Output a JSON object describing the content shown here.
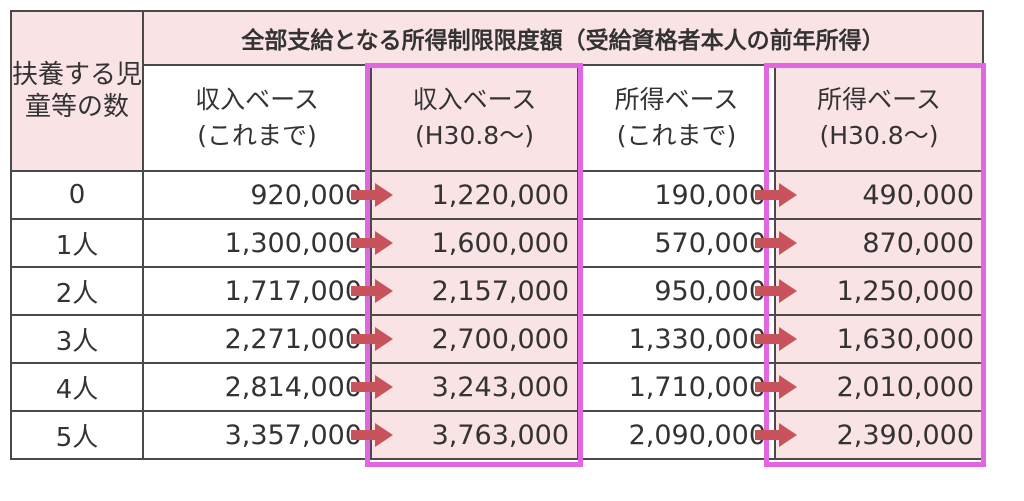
{
  "table": {
    "corner_header": "扶養する児童等の数",
    "main_header": "全部支給となる所得制限限度額（受給資格者本人の前年所得）",
    "columns": [
      {
        "label": "収入ベース",
        "sub": "(これまで)"
      },
      {
        "label": "収入ベース",
        "sub": "(H30.8～)"
      },
      {
        "label": "所得ベース",
        "sub": "(これまで)"
      },
      {
        "label": "所得ベース",
        "sub": "(H30.8～)"
      }
    ],
    "rows": [
      {
        "label": "0",
        "income_old": "920,000",
        "income_new": "1,220,000",
        "earn_old": "190,000",
        "earn_new": "490,000"
      },
      {
        "label": "1人",
        "income_old": "1,300,000",
        "income_new": "1,600,000",
        "earn_old": "570,000",
        "earn_new": "870,000"
      },
      {
        "label": "2人",
        "income_old": "1,717,000",
        "income_new": "2,157,000",
        "earn_old": "950,000",
        "earn_new": "1,250,000"
      },
      {
        "label": "3人",
        "income_old": "2,271,000",
        "income_new": "2,700,000",
        "earn_old": "1,330,000",
        "earn_new": "1,630,000"
      },
      {
        "label": "4人",
        "income_old": "2,814,000",
        "income_new": "3,243,000",
        "earn_old": "1,710,000",
        "earn_new": "2,010,000"
      },
      {
        "label": "5人",
        "income_old": "3,357,000",
        "income_new": "3,763,000",
        "earn_old": "2,090,000",
        "earn_new": "2,390,000"
      }
    ]
  },
  "colors": {
    "header_pink": "#f9e3e5",
    "highlight_magenta": "#e265e2",
    "arrow": "#c8535a",
    "border": "#4a4a4a"
  }
}
